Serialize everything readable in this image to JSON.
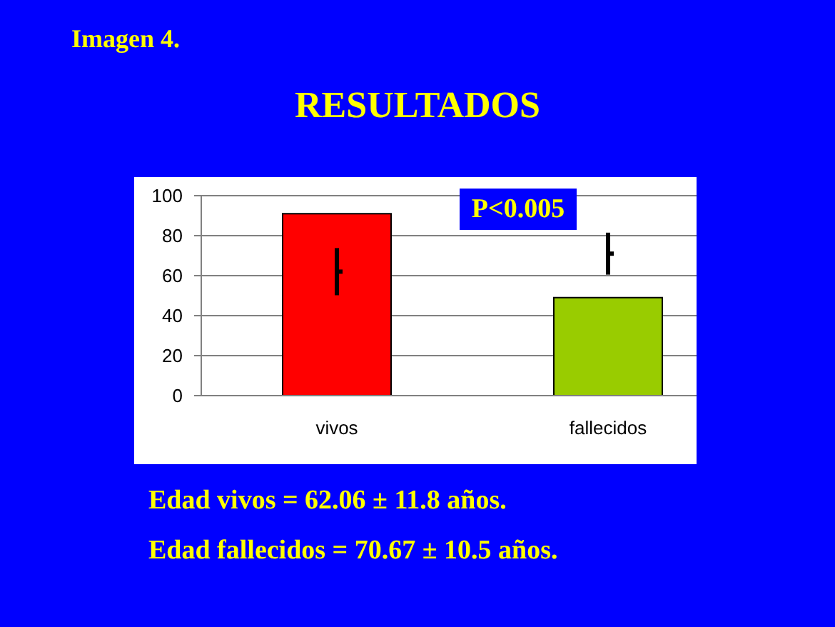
{
  "chart_data": {
    "type": "bar",
    "title": "RESULTADOS",
    "categories": [
      "vivos",
      "fallecidos"
    ],
    "series": [
      {
        "values": [
          91,
          49
        ],
        "colors": [
          "#ff0000",
          "#99cc00"
        ]
      },
      {
        "type": "scatter",
        "x": [
          "vivos",
          "fallecidos"
        ],
        "values": [
          62,
          71
        ],
        "errors": [
          11.8,
          10.5
        ],
        "color": "#000000",
        "marker": "square"
      }
    ],
    "ylim": [
      0,
      100
    ],
    "yticks": [
      0,
      20,
      40,
      60,
      80,
      100
    ],
    "grid": "y",
    "annotations": [
      "Imagen 4.",
      "P<0.005",
      "Edad vivos = 62.06 ± 11.8 años.",
      "Edad fallecidos = 70.67 ± 10.5 años."
    ]
  }
}
